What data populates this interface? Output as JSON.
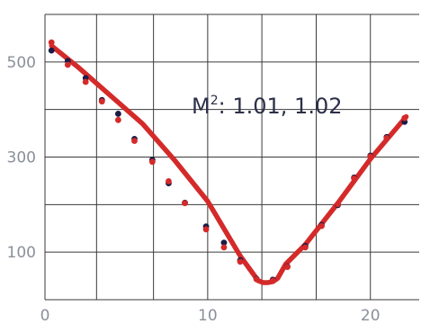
{
  "chart_data": {
    "type": "scatter",
    "title": "",
    "xlabel": "",
    "ylabel": "",
    "xlim": [
      0,
      23
    ],
    "ylim": [
      0,
      600
    ],
    "x_ticks": [
      0,
      10,
      20
    ],
    "y_ticks": [
      100,
      300,
      500
    ],
    "x_tick_labels": [
      "0",
      "10",
      "20"
    ],
    "y_tick_labels": [
      "100",
      "300",
      "500"
    ],
    "x_gridlines": [
      0,
      3.17,
      6.67,
      10.0,
      13.33,
      16.67,
      20.0
    ],
    "y_gridlines": [
      0,
      100,
      200,
      300,
      400,
      500,
      600
    ],
    "grid": true,
    "annotation": {
      "base": "M",
      "superscript": "2",
      "rest": ": 1.01, 1.02"
    },
    "colors": {
      "fit_line": "#d42a2a",
      "measured_series_a": "#1a1c46",
      "measured_series_b": "#d42a2a",
      "grid": "#3a3a3a"
    },
    "series": [
      {
        "marker": "dot",
        "color": "#1a1c46",
        "x": [
          0.4,
          1.4,
          2.5,
          3.5,
          4.5,
          5.5,
          6.6,
          7.6,
          8.6,
          9.9,
          11.0,
          12.0,
          13.0,
          14.0,
          14.9,
          16.0,
          17.0,
          18.0,
          19.0,
          20.0,
          21.0,
          22.1
        ],
        "y": [
          524,
          502,
          466,
          420,
          391,
          338,
          294,
          245,
          204,
          154,
          120,
          83,
          44,
          42,
          70,
          113,
          157,
          199,
          257,
          303,
          342,
          374
        ]
      },
      {
        "marker": "dot",
        "color": "#d42a2a",
        "x": [
          0.4,
          1.4,
          2.5,
          3.5,
          4.5,
          5.5,
          6.6,
          7.6,
          8.6,
          9.9,
          11.0,
          12.0,
          13.0,
          14.0,
          14.9,
          16.0,
          17.0,
          18.0,
          19.0,
          20.0,
          21.0,
          22.1
        ],
        "y": [
          541,
          494,
          458,
          417,
          378,
          334,
          290,
          249,
          203,
          148,
          110,
          80,
          43,
          40,
          69,
          110,
          155,
          201,
          255,
          301,
          340,
          382
        ]
      },
      {
        "marker": "line",
        "color": "#d42a2a",
        "x": [
          0.4,
          2.0,
          4.0,
          6.0,
          8.0,
          10.0,
          12.0,
          13.1,
          13.4,
          13.7,
          14.0,
          14.3,
          14.8,
          16.0,
          18.0,
          20.0,
          22.2
        ],
        "y": [
          534,
          490,
          430,
          370,
          292,
          207,
          92,
          40,
          36,
          36,
          38,
          45,
          75,
          116,
          203,
          296,
          385
        ]
      }
    ]
  }
}
